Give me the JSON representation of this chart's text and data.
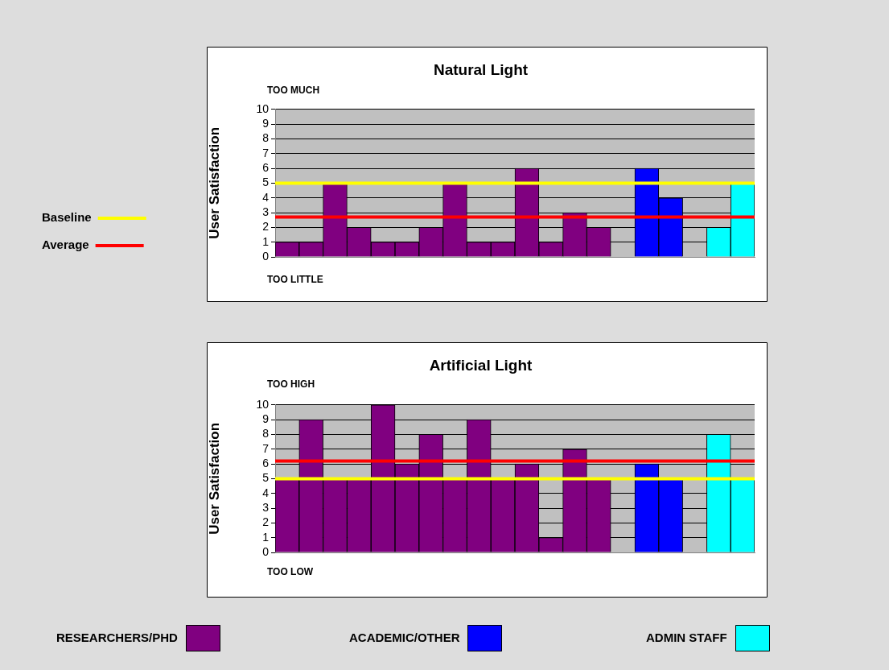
{
  "chart_data": [
    {
      "type": "bar",
      "title": "Natural Light",
      "ylabel": "User Satisfaction",
      "categories": [
        null,
        null,
        null,
        null,
        null,
        null,
        null,
        null,
        null,
        null,
        null,
        null,
        null,
        null,
        null,
        null,
        null,
        null,
        null,
        null
      ],
      "series": [
        {
          "color": "#800080",
          "values": [
            1,
            1,
            5,
            2,
            1,
            1,
            2,
            5,
            1,
            1,
            6,
            1,
            3,
            2,
            null,
            null,
            null,
            null,
            null,
            null
          ]
        },
        {
          "color": "#0000ff",
          "values": [
            null,
            null,
            null,
            null,
            null,
            null,
            null,
            null,
            null,
            null,
            null,
            null,
            null,
            null,
            null,
            6,
            4,
            null,
            null,
            null
          ]
        },
        {
          "color": "#00ffff",
          "values": [
            null,
            null,
            null,
            null,
            null,
            null,
            null,
            null,
            null,
            null,
            null,
            null,
            null,
            null,
            null,
            null,
            null,
            null,
            2,
            5
          ]
        }
      ],
      "ylim": [
        0,
        10
      ],
      "yticks": [
        0,
        1,
        2,
        3,
        4,
        5,
        6,
        7,
        8,
        9,
        10
      ],
      "grid": "y",
      "tick_labels": "y",
      "legend": "left",
      "ref_lines": [
        {
          "axis": "y",
          "value": 5,
          "label": "Baseline",
          "color": "#ffff00"
        },
        {
          "axis": "y",
          "value": 2.7,
          "label": "Average",
          "color": "#ff0000"
        }
      ],
      "annotations": [
        "TOO MUCH",
        "TOO LITTLE"
      ]
    },
    {
      "type": "bar",
      "title": "Artificial Light",
      "ylabel": "User Satisfaction",
      "categories": [
        null,
        null,
        null,
        null,
        null,
        null,
        null,
        null,
        null,
        null,
        null,
        null,
        null,
        null,
        null,
        null,
        null,
        null,
        null,
        null
      ],
      "series": [
        {
          "name": "RESEARCHERS/PHD",
          "color": "#800080",
          "values": [
            5,
            9,
            5,
            5,
            10,
            6,
            8,
            5,
            9,
            5,
            6,
            1,
            7,
            5,
            null,
            null,
            null,
            null,
            null,
            null
          ]
        },
        {
          "name": "ACADEMIC/OTHER",
          "color": "#0000ff",
          "values": [
            null,
            null,
            null,
            null,
            null,
            null,
            null,
            null,
            null,
            null,
            null,
            null,
            null,
            null,
            null,
            6,
            5,
            null,
            null,
            null
          ]
        },
        {
          "name": "ADMIN STAFF",
          "color": "#00ffff",
          "values": [
            null,
            null,
            null,
            null,
            null,
            null,
            null,
            null,
            null,
            null,
            null,
            null,
            null,
            null,
            null,
            null,
            null,
            null,
            8,
            5
          ]
        }
      ],
      "ylim": [
        0,
        10
      ],
      "yticks": [
        0,
        1,
        2,
        3,
        4,
        5,
        6,
        7,
        8,
        9,
        10
      ],
      "grid": "y",
      "tick_labels": "y",
      "legend": "bottom",
      "ref_lines": [
        {
          "axis": "y",
          "value": 6.2,
          "color": "#ff0000"
        },
        {
          "axis": "y",
          "value": 5,
          "color": "#ffff00"
        }
      ],
      "annotations": [
        "TOO HIGH",
        "TOO LOW"
      ]
    }
  ]
}
